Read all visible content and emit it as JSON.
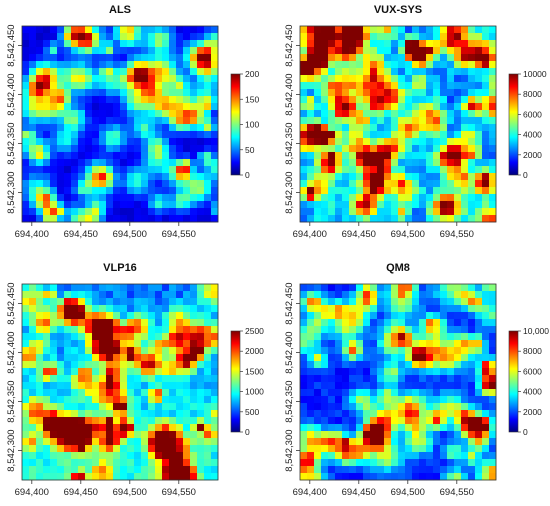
{
  "chart_data": [
    {
      "type": "heatmap",
      "title": "ALS",
      "x_ticks": [
        "694,400",
        "694,450",
        "694,500",
        "694,550"
      ],
      "x_tick_values": [
        694400,
        694450,
        694500,
        694550
      ],
      "y_ticks": [
        "8,542,300",
        "8,542,350",
        "8,542,400",
        "8,542,450"
      ],
      "y_tick_values": [
        8542300,
        8542350,
        8542400,
        8542450
      ],
      "xlim": [
        694390,
        694590
      ],
      "ylim": [
        8542270,
        8542470
      ],
      "colorbar": {
        "range": [
          0,
          200
        ],
        "ticks": [
          "0",
          "50",
          "100",
          "150",
          "200"
        ],
        "tick_values": [
          0,
          50,
          100,
          150,
          200
        ]
      },
      "density_level": 0.12,
      "peak_fraction": 0.05
    },
    {
      "type": "heatmap",
      "title": "VUX-SYS",
      "x_ticks": [
        "694,400",
        "694,450",
        "694,500",
        "694,550"
      ],
      "x_tick_values": [
        694400,
        694450,
        694500,
        694550
      ],
      "y_ticks": [
        "8,542,300",
        "8,542,350",
        "8,542,400",
        "8,542,450"
      ],
      "y_tick_values": [
        8542300,
        8542350,
        8542400,
        8542450
      ],
      "xlim": [
        694390,
        694590
      ],
      "ylim": [
        8542270,
        8542470
      ],
      "colorbar": {
        "range": [
          0,
          10000
        ],
        "ticks": [
          "0",
          "2000",
          "4000",
          "6000",
          "8000",
          "10000"
        ],
        "tick_values": [
          0,
          2000,
          4000,
          6000,
          8000,
          10000
        ]
      },
      "density_level": 0.35,
      "peak_fraction": 0.45
    },
    {
      "type": "heatmap",
      "title": "VLP16",
      "x_ticks": [
        "694,400",
        "694,450",
        "694,500",
        "694,550"
      ],
      "x_tick_values": [
        694400,
        694450,
        694500,
        694550
      ],
      "y_ticks": [
        "8,542,300",
        "8,542,350",
        "8,542,400",
        "8,542,450"
      ],
      "y_tick_values": [
        8542300,
        8542350,
        8542400,
        8542450
      ],
      "xlim": [
        694390,
        694590
      ],
      "ylim": [
        8542270,
        8542470
      ],
      "colorbar": {
        "range": [
          0,
          2500
        ],
        "ticks": [
          "0",
          "500",
          "1000",
          "1500",
          "2000",
          "2500"
        ],
        "tick_values": [
          0,
          500,
          1000,
          1500,
          2000,
          2500
        ]
      },
      "density_level": 0.3,
      "peak_fraction": 0.3
    },
    {
      "type": "heatmap",
      "title": "QM8",
      "x_ticks": [
        "694,400",
        "694,450",
        "694,500",
        "694,550"
      ],
      "x_tick_values": [
        694400,
        694450,
        694500,
        694550
      ],
      "y_ticks": [
        "8,542,300",
        "8,542,350",
        "8,542,400",
        "8,542,450"
      ],
      "y_tick_values": [
        8542300,
        8542350,
        8542400,
        8542450
      ],
      "xlim": [
        694390,
        694590
      ],
      "ylim": [
        8542270,
        8542470
      ],
      "colorbar": {
        "range": [
          0,
          10000
        ],
        "ticks": [
          "0",
          "2000",
          "4000",
          "6000",
          "8000",
          "10,000"
        ],
        "tick_values": [
          0,
          2000,
          4000,
          6000,
          8000,
          10000
        ]
      },
      "density_level": 0.2,
      "peak_fraction": 0.08
    }
  ],
  "colormap": [
    "#00007f",
    "#0000ff",
    "#007fff",
    "#00ffff",
    "#7fff7f",
    "#ffff00",
    "#ff7f00",
    "#ff0000",
    "#7f0000"
  ]
}
